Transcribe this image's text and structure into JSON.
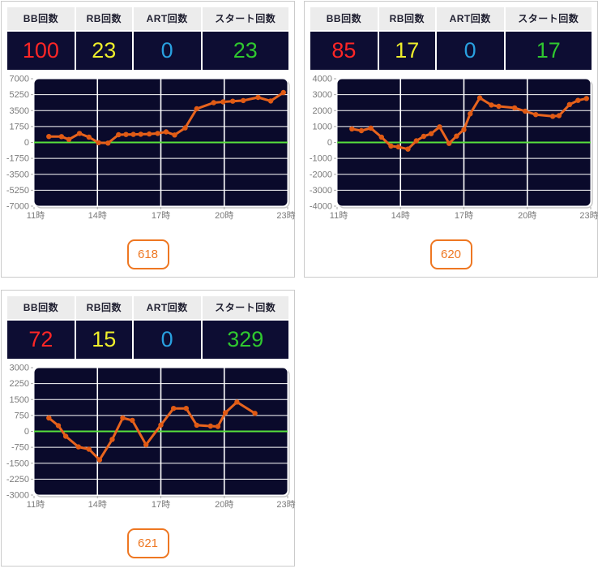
{
  "colors": {
    "panel_border": "#cbcbcb",
    "header_bg": "#ececec",
    "header_text": "#1f1f30",
    "value_bg": "#0d0d33",
    "bb_color": "#ff2626",
    "rb_color": "#eded2b",
    "art_color": "#29a0e0",
    "start_color": "#2fc82f",
    "axis_text": "#7a7a7a",
    "plot_bg": "#0a0a2b",
    "grid_color": "#ffffff",
    "zero_line_color": "#57e03c",
    "line_color": "#e8641e",
    "marker_color": "#e05a14",
    "badge_color": "#ee7722"
  },
  "stats_headers": [
    "BB回数",
    "RB回数",
    "ART回数",
    "スタート回数"
  ],
  "panels": [
    {
      "machine_no": "618",
      "stats": {
        "bb": "100",
        "rb": "23",
        "art": "0",
        "start": "23"
      },
      "chart_data": {
        "type": "line",
        "x_tick_labels": [
          "11時",
          "14時",
          "17時",
          "20時",
          "23時"
        ],
        "x_range": [
          11,
          23
        ],
        "ylim": [
          -7000,
          7000
        ],
        "y_ticks": [
          7000,
          5250,
          3500,
          1750,
          0,
          -1750,
          -3500,
          -5250,
          -7000
        ],
        "zero_line": 0,
        "grid": true,
        "points": [
          [
            11.7,
            650
          ],
          [
            12.3,
            640
          ],
          [
            12.65,
            330
          ],
          [
            13.15,
            990
          ],
          [
            13.6,
            580
          ],
          [
            14.05,
            -30
          ],
          [
            14.5,
            -70
          ],
          [
            15.0,
            850
          ],
          [
            15.35,
            870
          ],
          [
            15.7,
            880
          ],
          [
            16.05,
            900
          ],
          [
            16.45,
            930
          ],
          [
            16.85,
            990
          ],
          [
            17.25,
            1160
          ],
          [
            17.65,
            820
          ],
          [
            18.15,
            1600
          ],
          [
            18.7,
            3700
          ],
          [
            19.5,
            4370
          ],
          [
            19.95,
            4460
          ],
          [
            20.4,
            4530
          ],
          [
            20.9,
            4600
          ],
          [
            21.6,
            4950
          ],
          [
            22.2,
            4560
          ],
          [
            22.8,
            5480
          ]
        ]
      }
    },
    {
      "machine_no": "620",
      "stats": {
        "bb": "85",
        "rb": "17",
        "art": "0",
        "start": "17"
      },
      "chart_data": {
        "type": "line",
        "x_tick_labels": [
          "11時",
          "14時",
          "17時",
          "20時",
          "23時"
        ],
        "x_range": [
          11,
          23
        ],
        "ylim": [
          -4000,
          4000
        ],
        "y_ticks": [
          4000,
          3000,
          2000,
          1000,
          0,
          -1000,
          -2000,
          -3000,
          -4000
        ],
        "zero_line": 0,
        "grid": true,
        "points": [
          [
            11.7,
            850
          ],
          [
            12.15,
            740
          ],
          [
            12.6,
            900
          ],
          [
            13.1,
            330
          ],
          [
            13.55,
            -230
          ],
          [
            13.9,
            -280
          ],
          [
            14.35,
            -420
          ],
          [
            14.75,
            100
          ],
          [
            15.1,
            380
          ],
          [
            15.45,
            550
          ],
          [
            15.85,
            980
          ],
          [
            16.3,
            -60
          ],
          [
            16.65,
            400
          ],
          [
            17.0,
            800
          ],
          [
            17.3,
            1800
          ],
          [
            17.75,
            2800
          ],
          [
            18.3,
            2350
          ],
          [
            18.65,
            2270
          ],
          [
            19.4,
            2170
          ],
          [
            19.9,
            1960
          ],
          [
            20.4,
            1750
          ],
          [
            21.2,
            1640
          ],
          [
            21.5,
            1680
          ],
          [
            22.0,
            2380
          ],
          [
            22.4,
            2640
          ],
          [
            22.8,
            2760
          ]
        ]
      }
    },
    {
      "machine_no": "621",
      "stats": {
        "bb": "72",
        "rb": "15",
        "art": "0",
        "start": "329"
      },
      "chart_data": {
        "type": "line",
        "x_tick_labels": [
          "11時",
          "14時",
          "17時",
          "20時",
          "23時"
        ],
        "x_range": [
          11,
          23
        ],
        "ylim": [
          -3000,
          3000
        ],
        "y_ticks": [
          3000,
          2250,
          1500,
          750,
          0,
          -750,
          -1500,
          -2250,
          -3000
        ],
        "zero_line": 0,
        "grid": true,
        "points": [
          [
            11.7,
            630
          ],
          [
            12.15,
            270
          ],
          [
            12.5,
            -230
          ],
          [
            13.1,
            -730
          ],
          [
            13.6,
            -840
          ],
          [
            14.1,
            -1340
          ],
          [
            14.7,
            -380
          ],
          [
            15.2,
            630
          ],
          [
            15.65,
            520
          ],
          [
            16.3,
            -630
          ],
          [
            17.0,
            300
          ],
          [
            17.6,
            1080
          ],
          [
            18.2,
            1080
          ],
          [
            18.7,
            290
          ],
          [
            19.35,
            250
          ],
          [
            19.7,
            230
          ],
          [
            20.05,
            880
          ],
          [
            20.6,
            1380
          ],
          [
            21.45,
            850
          ]
        ]
      }
    }
  ]
}
